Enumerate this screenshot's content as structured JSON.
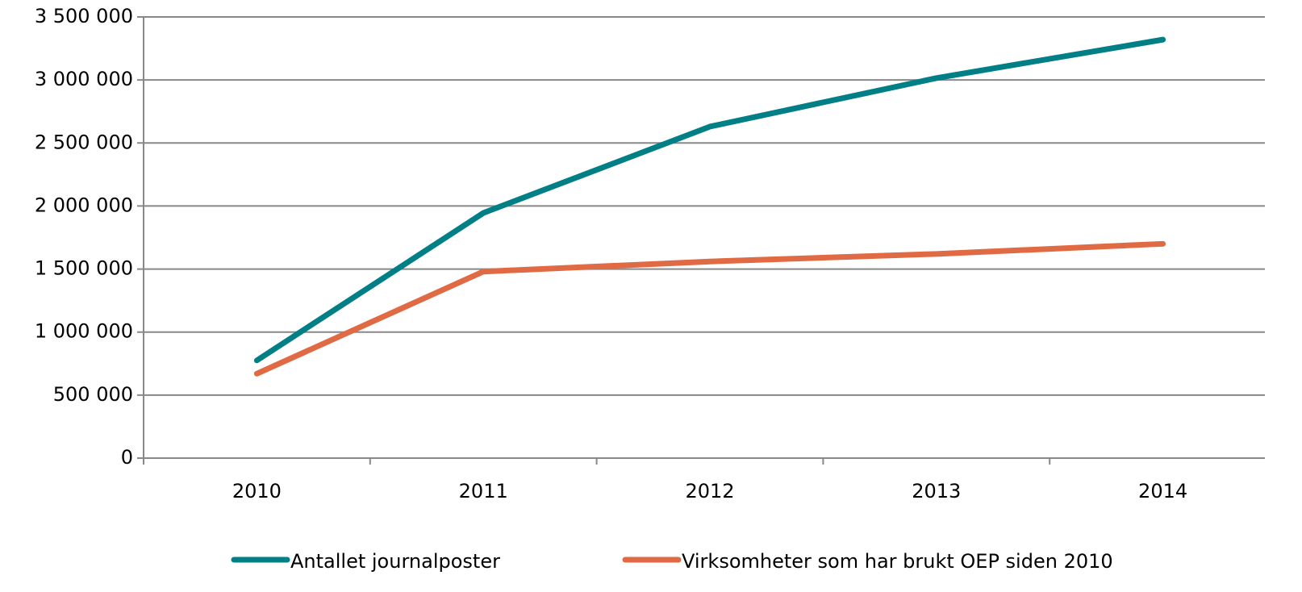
{
  "chart_data": {
    "type": "line",
    "categories": [
      "2010",
      "2011",
      "2012",
      "2013",
      "2014"
    ],
    "series": [
      {
        "name": "Antallet journalposter",
        "color": "#007f86",
        "values": [
          775000,
          1945000,
          2630000,
          3015000,
          3320000
        ]
      },
      {
        "name": "Virksomheter som har brukt OEP siden 2010",
        "color": "#e06a44",
        "values": [
          670000,
          1480000,
          1560000,
          1620000,
          1700000
        ]
      }
    ],
    "ylim": [
      0,
      3500000
    ],
    "yticks": [
      {
        "value": 0,
        "label": "0"
      },
      {
        "value": 500000,
        "label": "500 000"
      },
      {
        "value": 1000000,
        "label": "1 000 000"
      },
      {
        "value": 1500000,
        "label": "1 500 000"
      },
      {
        "value": 2000000,
        "label": "2 000 000"
      },
      {
        "value": 2500000,
        "label": "2 500 000"
      },
      {
        "value": 3000000,
        "label": "3 000 000"
      },
      {
        "value": 3500000,
        "label": "3 500 000"
      }
    ],
    "grid": true,
    "legend": "bottom"
  }
}
